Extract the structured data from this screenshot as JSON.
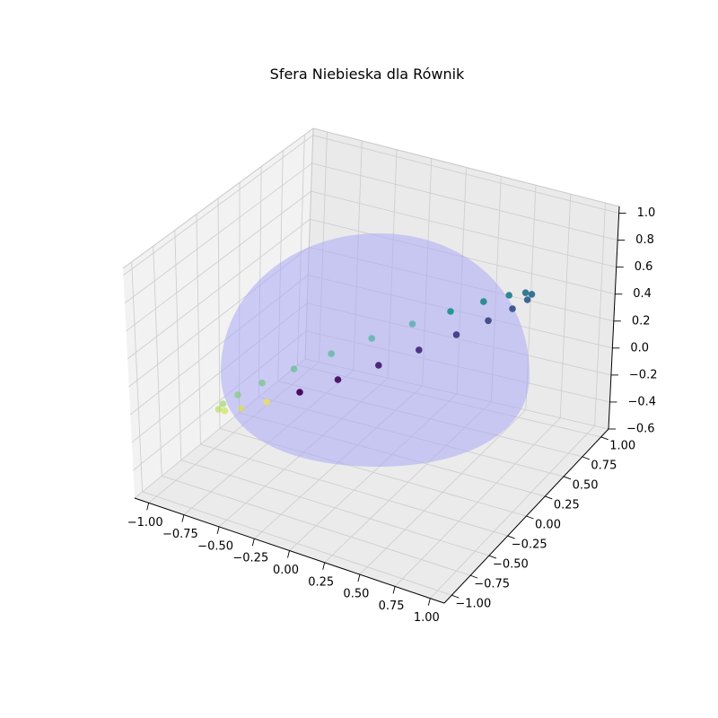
{
  "chart_data": {
    "type": "scatter",
    "projection": "3d",
    "title": "Sfera Niebieska dla Równik",
    "xlabel": "",
    "ylabel": "",
    "zlabel": "",
    "xlim": [
      -1.1,
      1.1
    ],
    "ylim": [
      -1.1,
      1.1
    ],
    "zlim": [
      -0.6,
      1.05
    ],
    "x_ticks": [
      "−1.00",
      "−0.75",
      "−0.50",
      "−0.25",
      "0.00",
      "0.25",
      "0.50",
      "0.75",
      "1.00"
    ],
    "y_ticks": [
      "−1.00",
      "−0.75",
      "−0.50",
      "−0.25",
      "0.00",
      "0.25",
      "0.50",
      "0.75",
      "1.00"
    ],
    "z_ticks": [
      "−0.6",
      "−0.4",
      "−0.2",
      "0.0",
      "0.2",
      "0.4",
      "0.6",
      "0.8",
      "1.0"
    ],
    "grid": true,
    "surface": {
      "shape": "hemisphere",
      "radius": 1.0,
      "color": "#b3b3f2",
      "alpha": 0.6
    },
    "points": {
      "colormap": "viridis",
      "count": 24,
      "x": [
        0.0,
        0.259,
        0.5,
        0.707,
        0.866,
        0.966,
        1.0,
        0.966,
        0.866,
        0.707,
        0.5,
        0.259,
        0.0,
        -0.259,
        -0.5,
        -0.707,
        -0.866,
        -0.966,
        -1.0,
        -0.966,
        -0.866,
        -0.707,
        -0.5,
        -0.259
      ],
      "y": [
        -1.0,
        -0.966,
        -0.866,
        -0.707,
        -0.5,
        -0.259,
        0.0,
        0.259,
        0.5,
        0.707,
        0.866,
        0.966,
        1.0,
        0.966,
        0.866,
        0.707,
        0.5,
        0.259,
        0.0,
        -0.259,
        -0.5,
        -0.707,
        -0.866,
        -0.966
      ],
      "z": [
        0.0,
        0.259,
        0.5,
        0.707,
        0.866,
        0.966,
        1.0,
        0.966,
        0.866,
        0.707,
        0.5,
        0.259,
        0.0,
        -0.259,
        -0.5,
        -0.707,
        -0.866,
        -0.966,
        -1.0,
        -0.966,
        -0.866,
        -0.707,
        -0.5,
        -0.259
      ]
    }
  }
}
